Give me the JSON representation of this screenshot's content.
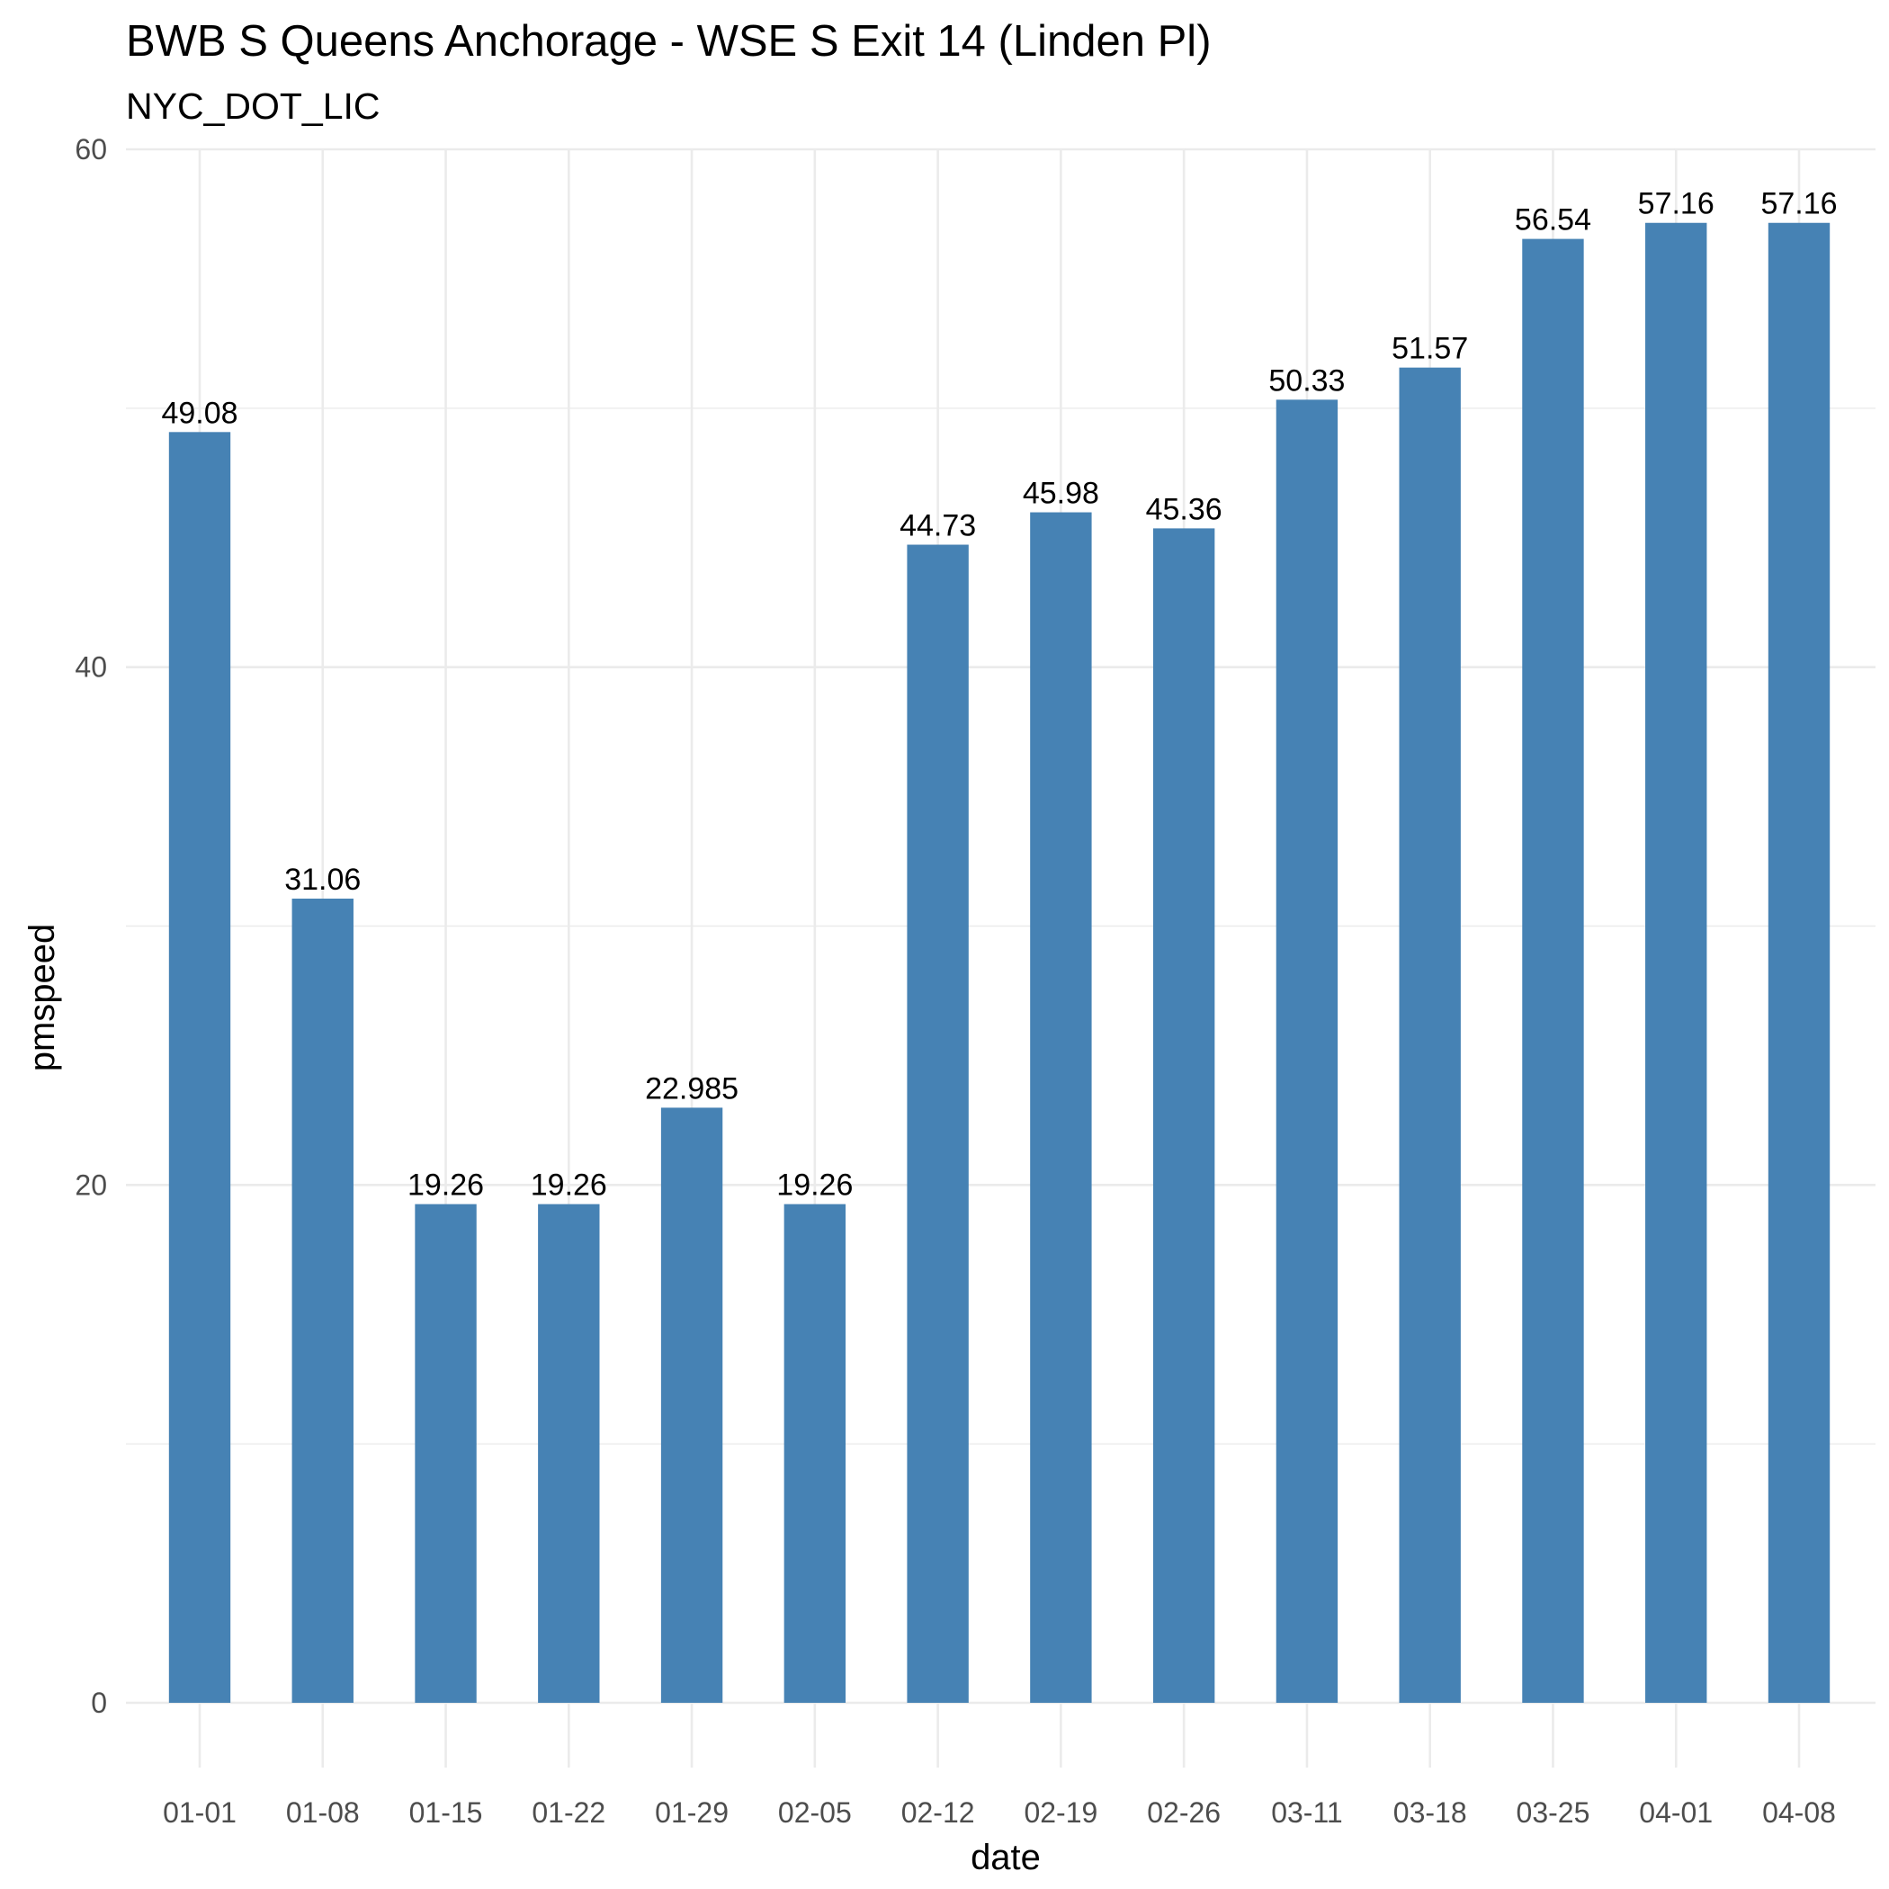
{
  "chart_data": {
    "type": "bar",
    "title": "BWB S Queens Anchorage - WSE S Exit 14 (Linden Pl)",
    "subtitle": "NYC_DOT_LIC",
    "xlabel": "date",
    "ylabel": "pmspeed",
    "categories": [
      "01-01",
      "01-08",
      "01-15",
      "01-22",
      "01-29",
      "02-05",
      "02-12",
      "02-19",
      "02-26",
      "03-11",
      "03-18",
      "03-25",
      "04-01",
      "04-08"
    ],
    "values": [
      49.08,
      31.06,
      19.26,
      19.26,
      22.985,
      19.26,
      44.73,
      45.98,
      45.36,
      50.33,
      51.57,
      56.54,
      57.16,
      57.16
    ],
    "data_labels": [
      "49.08",
      "31.06",
      "19.26",
      "19.26",
      "22.985",
      "19.26",
      "44.73",
      "45.98",
      "45.36",
      "50.33",
      "51.57",
      "56.54",
      "57.16",
      "57.16"
    ],
    "ylim": [
      0,
      60
    ],
    "yticks": [
      0,
      20,
      40,
      60
    ],
    "ytick_labels": [
      "0",
      "20",
      "40",
      "60"
    ],
    "grid": true,
    "bar_color": "#4682b4"
  }
}
